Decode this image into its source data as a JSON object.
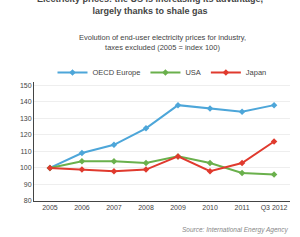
{
  "chart_data": {
    "type": "line",
    "title": "Electricity prices: the US is increasing its advantage,\nlargely thanks to shale gas",
    "subtitle": "Evolution of end-user electricity prices for industry,\ntaxes excluded (2005 = index 100)",
    "source": "Source: International Energy Agency",
    "categories": [
      "2005",
      "2006",
      "2007",
      "2008",
      "2009",
      "2010",
      "2011",
      "Q3 2012"
    ],
    "series": [
      {
        "name": "OECD Europe",
        "color": "#4da6d9",
        "values": [
          100,
          109,
          114,
          124,
          138,
          136,
          134,
          138
        ]
      },
      {
        "name": "USA",
        "color": "#6ab04c",
        "values": [
          100,
          104,
          104,
          103,
          107,
          103,
          97,
          96
        ]
      },
      {
        "name": "Japan",
        "color": "#e03a2e",
        "values": [
          100,
          99,
          98,
          99,
          107,
          98,
          103,
          116
        ]
      }
    ],
    "ylim": [
      80,
      152
    ],
    "yticks": [
      80,
      90,
      100,
      110,
      120,
      130,
      140,
      150
    ],
    "grid": true,
    "marker": "diamond",
    "line_style": "solid"
  }
}
